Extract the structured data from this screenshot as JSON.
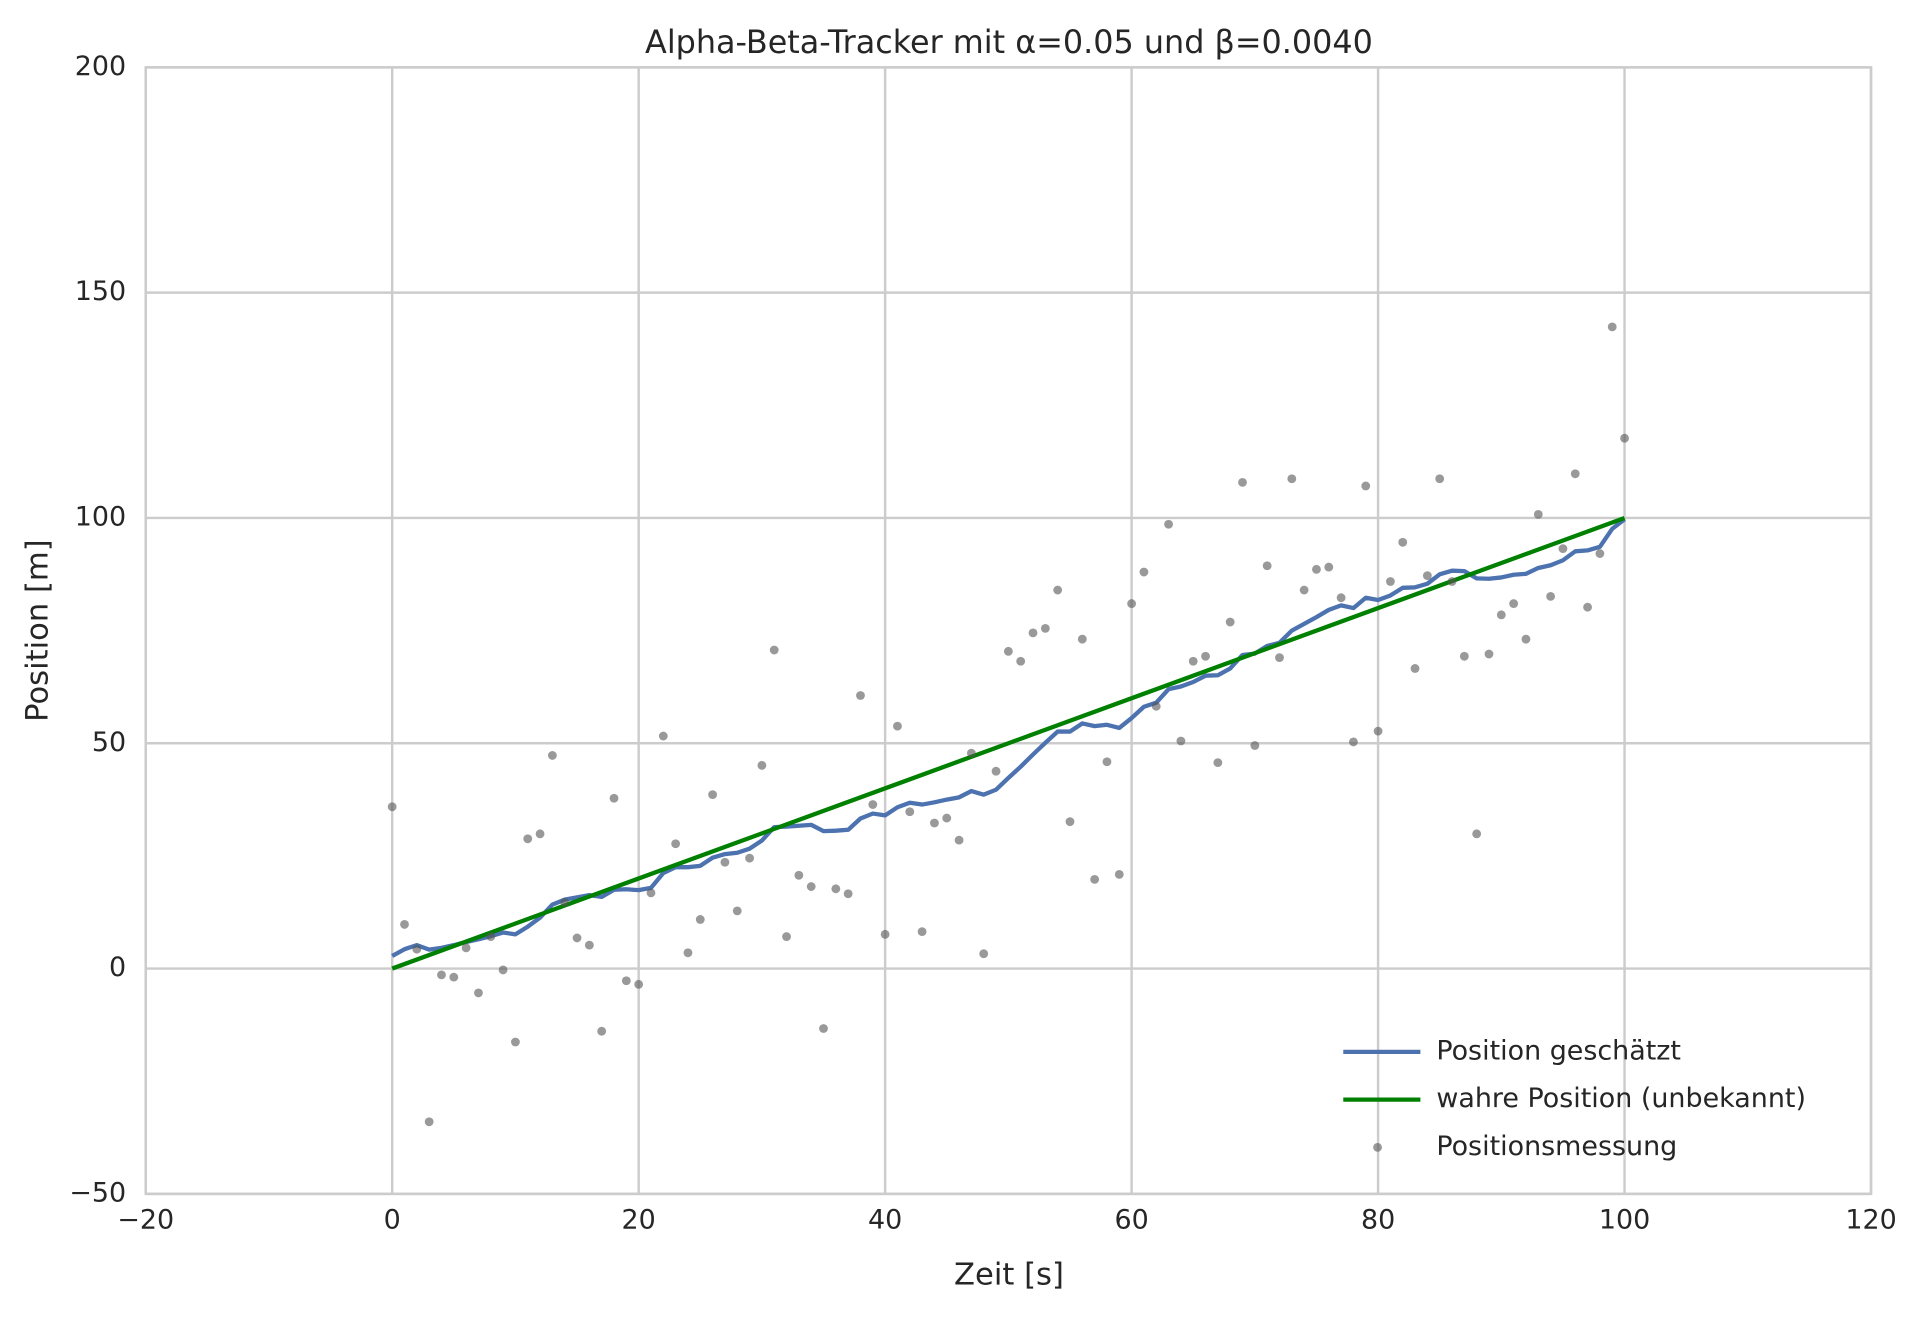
{
  "chart_data": {
    "type": "line",
    "title": "Alpha-Beta-Tracker mit α=0.05 und β=0.0040",
    "xlabel": "Zeit [s]",
    "ylabel": "Position [m]",
    "xlim": [
      -20,
      120
    ],
    "ylim": [
      -50,
      200
    ],
    "xticks": [
      {
        "value": -20,
        "label": "−20"
      },
      0,
      20,
      40,
      60,
      80,
      100,
      120
    ],
    "yticks": [
      {
        "value": -50,
        "label": "−50"
      },
      0,
      50,
      100,
      150,
      200
    ],
    "grid": true,
    "legend": "lower right",
    "x": [
      0,
      1,
      2,
      3,
      4,
      5,
      6,
      7,
      8,
      9,
      10,
      11,
      12,
      13,
      14,
      15,
      16,
      17,
      18,
      19,
      20,
      21,
      22,
      23,
      24,
      25,
      26,
      27,
      28,
      29,
      30,
      31,
      32,
      33,
      34,
      35,
      36,
      37,
      38,
      39,
      40,
      41,
      42,
      43,
      44,
      45,
      46,
      47,
      48,
      49,
      50,
      51,
      52,
      53,
      54,
      55,
      56,
      57,
      58,
      59,
      60,
      61,
      62,
      63,
      64,
      65,
      66,
      67,
      68,
      69,
      70,
      71,
      72,
      73,
      74,
      75,
      76,
      77,
      78,
      79,
      80,
      81,
      82,
      83,
      84,
      85,
      86,
      87,
      88,
      89,
      90,
      91,
      92,
      93,
      94,
      95,
      96,
      97,
      98,
      99,
      100
    ],
    "series": [
      {
        "name": "Position geschätzt",
        "color": "#4c72b0",
        "kind": "line",
        "values": [
          2.8,
          4.3,
          5.2,
          4.2,
          4.6,
          5.2,
          5.9,
          6.5,
          7.2,
          8.0,
          7.6,
          9.3,
          11.3,
          14.2,
          15.3,
          15.8,
          16.3,
          15.9,
          17.5,
          17.6,
          17.4,
          17.9,
          21.2,
          22.5,
          22.5,
          22.8,
          24.6,
          25.4,
          25.7,
          26.6,
          28.4,
          31.4,
          31.5,
          31.7,
          31.9,
          30.5,
          30.6,
          30.8,
          33.3,
          34.4,
          34.0,
          35.8,
          36.8,
          36.4,
          36.9,
          37.5,
          38.0,
          39.4,
          38.6,
          39.7,
          42.3,
          44.8,
          47.5,
          50.1,
          52.6,
          52.6,
          54.4,
          53.8,
          54.1,
          53.4,
          55.6,
          58.1,
          59.0,
          62.0,
          62.6,
          63.6,
          65.0,
          65.1,
          66.6,
          69.6,
          69.9,
          71.6,
          72.3,
          75.0,
          76.5,
          78.0,
          79.6,
          80.6,
          80.0,
          82.3,
          81.8,
          82.8,
          84.5,
          84.6,
          85.4,
          87.5,
          88.3,
          88.2,
          86.6,
          86.5,
          86.8,
          87.4,
          87.6,
          88.9,
          89.5,
          90.6,
          92.6,
          92.8,
          93.6,
          97.6,
          99.7
        ]
      },
      {
        "name": "wahre Position (unbekannt)",
        "color": "#008000",
        "kind": "line",
        "x": [
          0,
          100
        ],
        "values": [
          0,
          100
        ]
      },
      {
        "name": "Positionsmessung",
        "color": "#555555",
        "kind": "scatter",
        "values": [
          35.9,
          9.8,
          4.3,
          -34,
          -1.4,
          -1.9,
          4.6,
          -5.4,
          7.1,
          -0.3,
          -16.3,
          28.8,
          29.9,
          47.3,
          14.7,
          6.8,
          5.2,
          -13.9,
          37.8,
          -2.7,
          -3.5,
          16.8,
          51.6,
          27.7,
          3.5,
          10.9,
          38.6,
          23.6,
          12.8,
          24.5,
          45.1,
          70.7,
          7.1,
          20.7,
          18.2,
          -13.3,
          17.7,
          16.6,
          60.6,
          36.4,
          7.6,
          53.8,
          34.8,
          8.2,
          32.3,
          33.4,
          28.5,
          47.8,
          3.3,
          43.8,
          70.4,
          68.2,
          74.5,
          75.5,
          84.0,
          32.6,
          73.1,
          19.8,
          45.9,
          20.9,
          81.0,
          88.0,
          58.2,
          98.6,
          50.5,
          68.2,
          69.3,
          45.7,
          76.9,
          107.9,
          49.5,
          89.4,
          69.0,
          108.7,
          84.0,
          88.6,
          89.1,
          82.3,
          50.3,
          107.1,
          52.7,
          85.9,
          94.6,
          66.6,
          87.2,
          108.7,
          85.9,
          69.3,
          29.9,
          69.8,
          78.5,
          81.0,
          73.1,
          100.8,
          82.6,
          93.2,
          109.8,
          80.2,
          92.1,
          142.4,
          117.7
        ]
      }
    ]
  }
}
